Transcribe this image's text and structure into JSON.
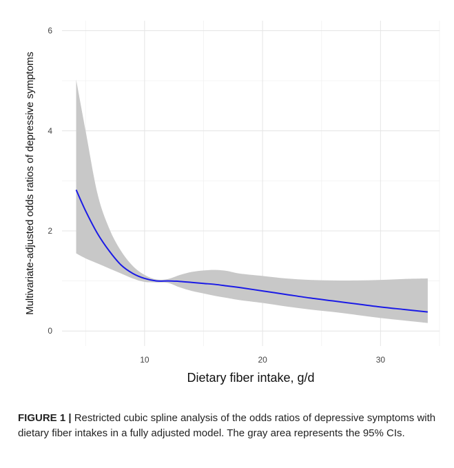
{
  "chart_data": {
    "type": "line",
    "title": "",
    "xlabel": "Dietary fiber intake, g/d",
    "ylabel": "Multivariate-adjusted odds ratios of depressive symptoms",
    "xlim": [
      3,
      35
    ],
    "ylim": [
      -0.3,
      6.2
    ],
    "x_ticks": [
      10,
      20,
      30
    ],
    "y_ticks": [
      0,
      2,
      4,
      6
    ],
    "x_tick_labels": [
      "10",
      "20",
      "30"
    ],
    "y_tick_labels": [
      "0",
      "2",
      "4",
      "6"
    ],
    "grid": true,
    "series": [
      {
        "color": "#1a1ae6",
        "x": [
          4.2,
          5,
          6,
          7,
          8,
          9,
          10,
          11,
          12,
          13,
          14,
          15,
          16,
          17,
          18,
          20,
          22,
          24,
          26,
          28,
          30,
          32,
          34
        ],
        "y": [
          2.82,
          2.4,
          1.95,
          1.6,
          1.32,
          1.15,
          1.05,
          1.0,
          1.0,
          0.99,
          0.97,
          0.95,
          0.93,
          0.9,
          0.87,
          0.8,
          0.73,
          0.66,
          0.6,
          0.54,
          0.48,
          0.43,
          0.38
        ],
        "ci_lower": [
          1.55,
          1.45,
          1.35,
          1.25,
          1.15,
          1.05,
          0.98,
          0.97,
          0.96,
          0.87,
          0.8,
          0.75,
          0.7,
          0.66,
          0.62,
          0.56,
          0.49,
          0.43,
          0.38,
          0.32,
          0.26,
          0.21,
          0.16
        ],
        "ci_upper": [
          5.02,
          4.0,
          2.75,
          2.05,
          1.6,
          1.3,
          1.12,
          1.03,
          1.04,
          1.12,
          1.18,
          1.21,
          1.22,
          1.2,
          1.15,
          1.1,
          1.05,
          1.02,
          1.01,
          1.01,
          1.02,
          1.04,
          1.05
        ],
        "ci_color": "#c8c8c8"
      }
    ]
  },
  "caption": {
    "label": "FIGURE 1 |",
    "text": " Restricted cubic spline analysis of the odds ratios of depressive symptoms with dietary fiber intakes in a fully adjusted model. The gray area represents the 95% CIs."
  }
}
